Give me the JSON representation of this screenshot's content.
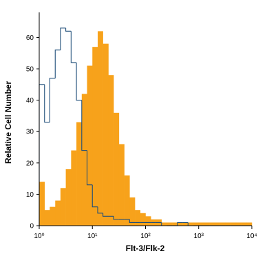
{
  "chart_data": {
    "type": "histogram",
    "xlabel": "Flt-3/Flk-2",
    "ylabel": "Relative Cell Number",
    "xscale": "log",
    "xlim": [
      1,
      10000
    ],
    "ylim": [
      0,
      68
    ],
    "xticks": [
      {
        "value": 1,
        "label": "10⁰"
      },
      {
        "value": 10,
        "label": "10¹"
      },
      {
        "value": 100,
        "label": "10²"
      },
      {
        "value": 1000,
        "label": "10³"
      },
      {
        "value": 10000,
        "label": "10⁴"
      }
    ],
    "yticks": [
      0,
      10,
      20,
      30,
      40,
      50,
      60
    ],
    "bins": [
      1,
      1.26,
      1.58,
      2,
      2.51,
      3.16,
      3.98,
      5.01,
      6.31,
      7.94,
      10,
      12.6,
      15.8,
      20,
      25.1,
      31.6,
      39.8,
      50.1,
      63.1,
      79.4,
      100,
      126,
      158,
      200,
      251,
      316,
      398,
      501,
      631,
      794,
      1000,
      1260,
      1580,
      2000,
      2510,
      3160,
      3980,
      5010,
      6310,
      7940,
      10000
    ],
    "series": [
      {
        "style": "filled",
        "color": "#f7a21b",
        "values": [
          14,
          5,
          6,
          8,
          12,
          18,
          24,
          33,
          42,
          51,
          57,
          62,
          58,
          48,
          36,
          26,
          16,
          9,
          5,
          4,
          3,
          2,
          2,
          1,
          1,
          1,
          1,
          1,
          1,
          1,
          1,
          1,
          1,
          1,
          1,
          1,
          1,
          1,
          1,
          1
        ]
      },
      {
        "style": "outline",
        "color": "#1f4e79",
        "values": [
          45,
          33,
          47,
          56,
          63,
          62,
          52,
          40,
          24,
          13,
          6,
          4,
          3,
          3,
          2,
          2,
          2,
          1,
          1,
          1,
          1,
          1,
          1,
          0,
          0,
          0,
          1,
          1,
          0,
          0,
          0,
          0,
          0,
          0,
          0,
          0,
          0,
          0,
          0,
          0
        ]
      }
    ]
  }
}
